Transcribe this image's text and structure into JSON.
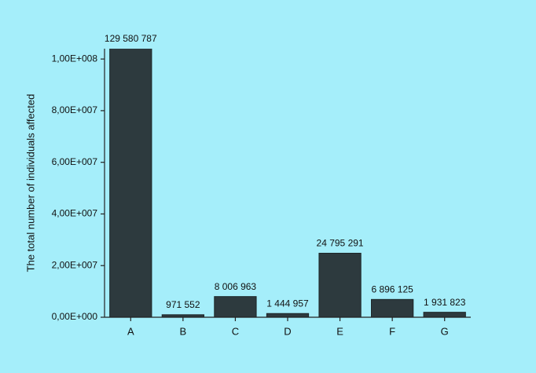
{
  "chart_data": {
    "type": "bar",
    "y_label": "The total number of individuals affected",
    "categories": [
      "A",
      "B",
      "C",
      "D",
      "E",
      "F",
      "G"
    ],
    "values": [
      129580787,
      971552,
      8006963,
      1444957,
      24795291,
      6896125,
      1931823
    ],
    "value_labels": [
      "129 580 787",
      "971 552",
      "8 006 963",
      "1 444 957",
      "24 795 291",
      "6 896 125",
      "1 931 823"
    ],
    "color": "#2d3a3e",
    "ylim": [
      0,
      104000000
    ],
    "yticks": [
      {
        "value": 0,
        "label": "0,00E+000"
      },
      {
        "value": 20000000,
        "label": "2,00E+007"
      },
      {
        "value": 40000000,
        "label": "4,00E+007"
      },
      {
        "value": 60000000,
        "label": "6,00E+007"
      },
      {
        "value": 80000000,
        "label": "8,00E+007"
      },
      {
        "value": 100000000,
        "label": "1,00E+008"
      }
    ],
    "grid": false
  }
}
